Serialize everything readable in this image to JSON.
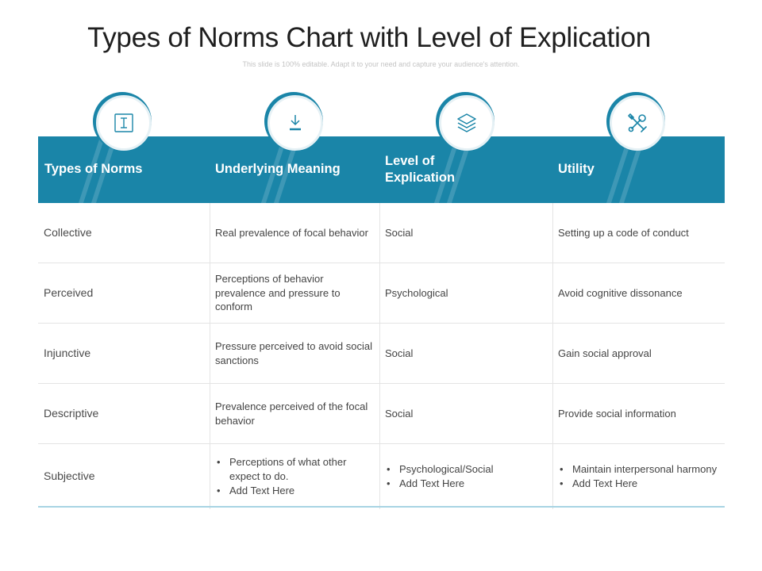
{
  "title": "Types of Norms Chart with Level of Explication",
  "subtitle": "This slide is 100% editable. Adapt it to your need and capture your audience's attention.",
  "colors": {
    "header": "#1a85a8",
    "accent_line": "#a8d4e3"
  },
  "icons": [
    "text-cursor-icon",
    "download-icon",
    "layers-icon",
    "tools-icon"
  ],
  "headers": [
    "Types of Norms",
    "Underlying Meaning",
    "Level of Explication",
    "Utility"
  ],
  "rows": [
    {
      "type": "Collective",
      "meaning": "Real prevalence of focal behavior",
      "level": "Social",
      "utility": "Setting up a code of conduct"
    },
    {
      "type": "Perceived",
      "meaning": "Perceptions of behavior prevalence and pressure to conform",
      "level": "Psychological",
      "utility": "Avoid cognitive dissonance"
    },
    {
      "type": "Injunctive",
      "meaning": "Pressure perceived to avoid social sanctions",
      "level": "Social",
      "utility": "Gain social approval"
    },
    {
      "type": "Descriptive",
      "meaning": "Prevalence perceived of the focal behavior",
      "level": "Social",
      "utility": "Provide social information"
    },
    {
      "type": "Subjective",
      "meaning": [
        "Perceptions of what other expect to do.",
        "Add Text Here"
      ],
      "level": [
        "Psychological/Social",
        "Add Text Here"
      ],
      "utility": [
        "Maintain interpersonal harmony",
        "Add Text Here"
      ]
    }
  ]
}
